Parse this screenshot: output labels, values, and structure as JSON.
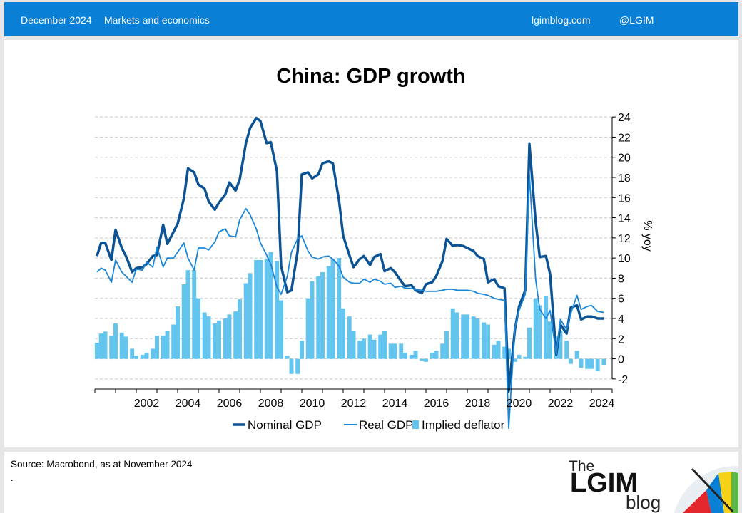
{
  "header": {
    "date": "December 2024",
    "category": "Markets and economics",
    "site": "lgimblog.com",
    "handle": "@LGIM"
  },
  "footer": {
    "source": "Source: Macrobond,  as at November 2024",
    "dot": "."
  },
  "logo": {
    "the": "The",
    "name": "LGIM",
    "blog": "blog"
  },
  "colors": {
    "nominal": "#0b5394",
    "real": "#1a86d8",
    "deflator": "#63c5ee",
    "header": "#0a7fd6"
  },
  "chart_data": {
    "type": "line",
    "title": "China: GDP growth",
    "ylabel": "% yoy",
    "ylim": [
      -3,
      25
    ],
    "yticks": [
      -2,
      0,
      2,
      4,
      6,
      8,
      10,
      12,
      14,
      16,
      18,
      20,
      22,
      24
    ],
    "xlim": [
      2000.0,
      2025.0
    ],
    "xticks": [
      2002,
      2004,
      2006,
      2008,
      2010,
      2012,
      2014,
      2016,
      2018,
      2020,
      2022,
      2024
    ],
    "grid": true,
    "legend_position": "bottom",
    "series": [
      {
        "name": "Nominal GDP",
        "style": "line-thick",
        "points": [
          [
            2000.1,
            10.2
          ],
          [
            2000.3,
            11.5
          ],
          [
            2000.5,
            11.5
          ],
          [
            2000.8,
            9.8
          ],
          [
            2001.0,
            12.8
          ],
          [
            2001.3,
            11.0
          ],
          [
            2001.5,
            10.2
          ],
          [
            2001.8,
            8.6
          ],
          [
            2002.0,
            9.0
          ],
          [
            2002.3,
            9.1
          ],
          [
            2002.5,
            9.4
          ],
          [
            2002.8,
            10.2
          ],
          [
            2003.0,
            10.3
          ],
          [
            2003.3,
            13.3
          ],
          [
            2003.5,
            11.4
          ],
          [
            2003.8,
            12.6
          ],
          [
            2004.0,
            13.4
          ],
          [
            2004.3,
            15.9
          ],
          [
            2004.5,
            18.9
          ],
          [
            2004.8,
            18.5
          ],
          [
            2005.0,
            17.3
          ],
          [
            2005.3,
            16.9
          ],
          [
            2005.5,
            15.6
          ],
          [
            2005.8,
            14.8
          ],
          [
            2006.0,
            15.5
          ],
          [
            2006.3,
            16.3
          ],
          [
            2006.5,
            17.5
          ],
          [
            2006.8,
            16.7
          ],
          [
            2007.0,
            17.8
          ],
          [
            2007.3,
            21.4
          ],
          [
            2007.5,
            22.9
          ],
          [
            2007.8,
            23.9
          ],
          [
            2008.0,
            23.6
          ],
          [
            2008.3,
            21.4
          ],
          [
            2008.5,
            21.5
          ],
          [
            2008.8,
            18.6
          ],
          [
            2009.0,
            9.2
          ],
          [
            2009.3,
            6.6
          ],
          [
            2009.5,
            6.8
          ],
          [
            2009.8,
            10.7
          ],
          [
            2010.0,
            18.3
          ],
          [
            2010.3,
            18.5
          ],
          [
            2010.5,
            17.9
          ],
          [
            2010.8,
            18.3
          ],
          [
            2011.0,
            19.4
          ],
          [
            2011.3,
            19.6
          ],
          [
            2011.5,
            19.4
          ],
          [
            2011.8,
            15.7
          ],
          [
            2012.0,
            12.2
          ],
          [
            2012.3,
            10.3
          ],
          [
            2012.5,
            9.1
          ],
          [
            2012.8,
            9.9
          ],
          [
            2013.0,
            10.2
          ],
          [
            2013.3,
            9.3
          ],
          [
            2013.5,
            10.1
          ],
          [
            2013.8,
            10.4
          ],
          [
            2014.0,
            8.7
          ],
          [
            2014.3,
            9.0
          ],
          [
            2014.5,
            8.6
          ],
          [
            2014.8,
            7.7
          ],
          [
            2015.0,
            7.2
          ],
          [
            2015.3,
            7.3
          ],
          [
            2015.5,
            6.8
          ],
          [
            2015.8,
            6.5
          ],
          [
            2016.0,
            7.4
          ],
          [
            2016.3,
            7.6
          ],
          [
            2016.5,
            8.2
          ],
          [
            2016.8,
            9.7
          ],
          [
            2017.0,
            11.9
          ],
          [
            2017.3,
            11.2
          ],
          [
            2017.5,
            11.3
          ],
          [
            2017.8,
            11.2
          ],
          [
            2018.0,
            11.0
          ],
          [
            2018.3,
            10.7
          ],
          [
            2018.5,
            10.2
          ],
          [
            2018.8,
            9.9
          ],
          [
            2019.0,
            7.6
          ],
          [
            2019.3,
            7.9
          ],
          [
            2019.5,
            7.2
          ],
          [
            2019.8,
            7.0
          ],
          [
            2020.0,
            -3.2
          ],
          [
            2020.3,
            2.9
          ],
          [
            2020.5,
            5.2
          ],
          [
            2020.8,
            6.8
          ],
          [
            2021.0,
            21.3
          ],
          [
            2021.3,
            13.6
          ],
          [
            2021.5,
            10.1
          ],
          [
            2021.8,
            10.2
          ],
          [
            2022.0,
            8.4
          ],
          [
            2022.3,
            0.4
          ],
          [
            2022.5,
            3.4
          ],
          [
            2022.8,
            2.5
          ],
          [
            2023.0,
            5.1
          ],
          [
            2023.3,
            5.3
          ],
          [
            2023.5,
            3.9
          ],
          [
            2023.8,
            4.2
          ],
          [
            2024.0,
            4.2
          ],
          [
            2024.3,
            4.0
          ],
          [
            2024.6,
            4.0
          ]
        ]
      },
      {
        "name": "Real GDP",
        "style": "line-thin",
        "points": [
          [
            2000.1,
            8.6
          ],
          [
            2000.3,
            9.0
          ],
          [
            2000.5,
            8.8
          ],
          [
            2000.8,
            7.6
          ],
          [
            2001.0,
            9.8
          ],
          [
            2001.3,
            8.6
          ],
          [
            2001.5,
            8.2
          ],
          [
            2001.8,
            7.6
          ],
          [
            2002.0,
            8.9
          ],
          [
            2002.3,
            8.8
          ],
          [
            2002.5,
            9.6
          ],
          [
            2002.8,
            9.1
          ],
          [
            2003.0,
            11.1
          ],
          [
            2003.3,
            9.1
          ],
          [
            2003.5,
            10.0
          ],
          [
            2003.8,
            10.0
          ],
          [
            2004.0,
            10.6
          ],
          [
            2004.3,
            11.5
          ],
          [
            2004.5,
            10.0
          ],
          [
            2004.8,
            8.8
          ],
          [
            2005.0,
            11.0
          ],
          [
            2005.3,
            11.0
          ],
          [
            2005.5,
            10.8
          ],
          [
            2005.8,
            11.6
          ],
          [
            2006.0,
            12.6
          ],
          [
            2006.3,
            12.9
          ],
          [
            2006.5,
            12.2
          ],
          [
            2006.8,
            12.1
          ],
          [
            2007.0,
            13.8
          ],
          [
            2007.3,
            14.9
          ],
          [
            2007.5,
            14.3
          ],
          [
            2007.8,
            12.9
          ],
          [
            2008.0,
            11.5
          ],
          [
            2008.3,
            10.3
          ],
          [
            2008.5,
            9.4
          ],
          [
            2008.8,
            7.1
          ],
          [
            2009.0,
            6.4
          ],
          [
            2009.3,
            8.2
          ],
          [
            2009.5,
            10.6
          ],
          [
            2009.8,
            11.9
          ],
          [
            2010.0,
            12.2
          ],
          [
            2010.3,
            10.7
          ],
          [
            2010.5,
            10.1
          ],
          [
            2010.8,
            9.9
          ],
          [
            2011.0,
            10.1
          ],
          [
            2011.3,
            10.2
          ],
          [
            2011.5,
            9.9
          ],
          [
            2011.8,
            9.2
          ],
          [
            2012.0,
            8.1
          ],
          [
            2012.3,
            7.6
          ],
          [
            2012.5,
            7.5
          ],
          [
            2012.8,
            7.5
          ],
          [
            2013.0,
            7.9
          ],
          [
            2013.3,
            7.6
          ],
          [
            2013.5,
            7.9
          ],
          [
            2013.8,
            7.7
          ],
          [
            2014.0,
            7.4
          ],
          [
            2014.3,
            7.5
          ],
          [
            2014.5,
            7.1
          ],
          [
            2014.8,
            7.2
          ],
          [
            2015.0,
            7.0
          ],
          [
            2015.3,
            7.0
          ],
          [
            2015.5,
            6.9
          ],
          [
            2015.8,
            6.8
          ],
          [
            2016.0,
            6.7
          ],
          [
            2016.3,
            6.7
          ],
          [
            2016.5,
            6.7
          ],
          [
            2016.8,
            6.8
          ],
          [
            2017.0,
            6.9
          ],
          [
            2017.3,
            6.9
          ],
          [
            2017.5,
            6.8
          ],
          [
            2017.8,
            6.8
          ],
          [
            2018.0,
            6.8
          ],
          [
            2018.3,
            6.7
          ],
          [
            2018.5,
            6.5
          ],
          [
            2018.8,
            6.4
          ],
          [
            2019.0,
            6.3
          ],
          [
            2019.3,
            6.0
          ],
          [
            2019.5,
            5.9
          ],
          [
            2019.8,
            5.8
          ],
          [
            2020.0,
            -6.9
          ],
          [
            2020.3,
            3.1
          ],
          [
            2020.5,
            4.8
          ],
          [
            2020.8,
            6.4
          ],
          [
            2021.0,
            18.3
          ],
          [
            2021.3,
            7.9
          ],
          [
            2021.5,
            4.9
          ],
          [
            2021.8,
            4.0
          ],
          [
            2022.0,
            4.8
          ],
          [
            2022.3,
            0.4
          ],
          [
            2022.5,
            3.9
          ],
          [
            2022.8,
            2.9
          ],
          [
            2023.0,
            4.5
          ],
          [
            2023.3,
            6.3
          ],
          [
            2023.5,
            4.9
          ],
          [
            2023.8,
            5.2
          ],
          [
            2024.0,
            5.3
          ],
          [
            2024.3,
            4.7
          ],
          [
            2024.6,
            4.6
          ]
        ]
      },
      {
        "name": "Implied deflator",
        "style": "bar",
        "points": [
          [
            2000.1,
            1.6
          ],
          [
            2000.3,
            2.5
          ],
          [
            2000.5,
            2.7
          ],
          [
            2000.8,
            2.3
          ],
          [
            2001.0,
            3.5
          ],
          [
            2001.3,
            2.6
          ],
          [
            2001.5,
            2.2
          ],
          [
            2001.8,
            1.0
          ],
          [
            2002.0,
            0.3
          ],
          [
            2002.3,
            0.4
          ],
          [
            2002.5,
            0.6
          ],
          [
            2002.8,
            1.0
          ],
          [
            2003.0,
            2.3
          ],
          [
            2003.3,
            2.3
          ],
          [
            2003.5,
            2.8
          ],
          [
            2003.8,
            3.4
          ],
          [
            2004.0,
            5.2
          ],
          [
            2004.3,
            7.4
          ],
          [
            2004.5,
            8.8
          ],
          [
            2004.8,
            8.8
          ],
          [
            2005.0,
            6.0
          ],
          [
            2005.3,
            4.6
          ],
          [
            2005.5,
            4.2
          ],
          [
            2005.8,
            3.5
          ],
          [
            2006.0,
            3.8
          ],
          [
            2006.3,
            4.0
          ],
          [
            2006.5,
            4.4
          ],
          [
            2006.8,
            4.7
          ],
          [
            2007.0,
            5.9
          ],
          [
            2007.3,
            7.5
          ],
          [
            2007.5,
            8.5
          ],
          [
            2007.8,
            9.8
          ],
          [
            2008.0,
            9.8
          ],
          [
            2008.3,
            9.9
          ],
          [
            2008.5,
            10.6
          ],
          [
            2008.8,
            9.7
          ],
          [
            2009.0,
            5.8
          ],
          [
            2009.3,
            0.3
          ],
          [
            2009.5,
            -1.5
          ],
          [
            2009.8,
            -1.5
          ],
          [
            2010.0,
            1.8
          ],
          [
            2010.3,
            6.0
          ],
          [
            2010.5,
            7.7
          ],
          [
            2010.8,
            8.2
          ],
          [
            2011.0,
            8.6
          ],
          [
            2011.3,
            9.2
          ],
          [
            2011.5,
            9.9
          ],
          [
            2011.8,
            10.0
          ],
          [
            2012.0,
            5.0
          ],
          [
            2012.3,
            4.2
          ],
          [
            2012.5,
            2.8
          ],
          [
            2012.8,
            1.8
          ],
          [
            2013.0,
            2.0
          ],
          [
            2013.3,
            2.4
          ],
          [
            2013.5,
            1.9
          ],
          [
            2013.8,
            2.4
          ],
          [
            2014.0,
            2.8
          ],
          [
            2014.3,
            1.5
          ],
          [
            2014.5,
            1.5
          ],
          [
            2014.8,
            1.5
          ],
          [
            2015.0,
            0.6
          ],
          [
            2015.3,
            0.4
          ],
          [
            2015.5,
            0.8
          ],
          [
            2015.8,
            -0.2
          ],
          [
            2016.0,
            -0.3
          ],
          [
            2016.3,
            0.6
          ],
          [
            2016.5,
            0.8
          ],
          [
            2016.8,
            1.5
          ],
          [
            2017.0,
            2.8
          ],
          [
            2017.3,
            5.0
          ],
          [
            2017.5,
            4.6
          ],
          [
            2017.8,
            4.4
          ],
          [
            2018.0,
            4.4
          ],
          [
            2018.3,
            4.2
          ],
          [
            2018.5,
            4.0
          ],
          [
            2018.8,
            3.6
          ],
          [
            2019.0,
            3.4
          ],
          [
            2019.3,
            1.4
          ],
          [
            2019.5,
            1.8
          ],
          [
            2019.8,
            1.2
          ],
          [
            2020.0,
            1.0
          ],
          [
            2020.3,
            -0.3
          ],
          [
            2020.5,
            0.4
          ],
          [
            2020.8,
            0.2
          ],
          [
            2021.0,
            3.1
          ],
          [
            2021.3,
            6.0
          ],
          [
            2021.5,
            5.3
          ],
          [
            2021.8,
            6.2
          ],
          [
            2022.0,
            3.7
          ],
          [
            2022.3,
            2.2
          ],
          [
            2022.5,
            2.8
          ],
          [
            2022.8,
            1.8
          ],
          [
            2023.0,
            -0.5
          ],
          [
            2023.3,
            0.8
          ],
          [
            2023.5,
            -0.9
          ],
          [
            2023.8,
            -1.0
          ],
          [
            2024.0,
            -1.0
          ],
          [
            2024.3,
            -1.2
          ],
          [
            2024.6,
            -0.6
          ]
        ]
      }
    ]
  }
}
